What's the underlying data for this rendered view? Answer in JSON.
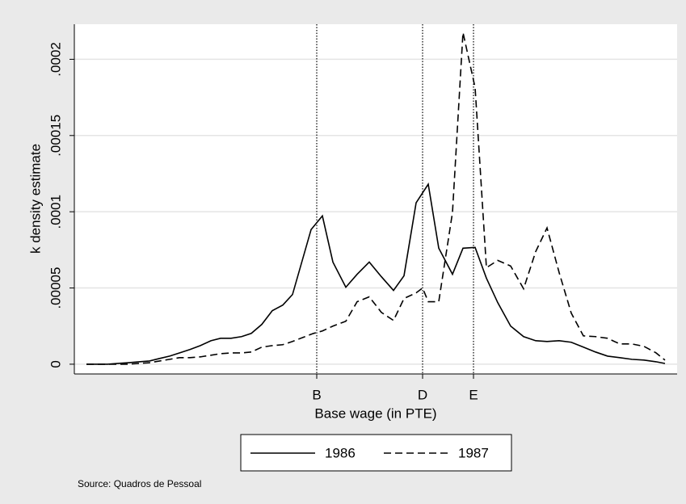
{
  "chart_data": {
    "type": "line",
    "ylabel": "k density estimate",
    "xlabel": "Base wage (in PTE)",
    "source": "Source: Quadros de Pessoal",
    "xlim": [
      0,
      746
    ],
    "ylim": [
      -6.4e-06,
      0.000223
    ],
    "xticks": [
      {
        "value": 300,
        "label": "B"
      },
      {
        "value": 431,
        "label": "D"
      },
      {
        "value": 494,
        "label": "E"
      }
    ],
    "yticks": [
      0,
      {
        "value": 5e-05,
        "label": ".00005"
      },
      {
        "value": 0.0001,
        "label": ".0001"
      },
      {
        "value": 0.00015,
        "label": ".00015"
      },
      {
        "value": 0.0002,
        "label": ".0002"
      }
    ],
    "ygrid": true,
    "xgrid": true,
    "xgrid_style": "dotted",
    "legend": "bottom",
    "series": [
      {
        "name": "1986",
        "color": "#000000",
        "dash": "solid",
        "x": [
          15,
          28,
          41,
          54,
          67,
          80,
          93,
          105,
          118,
          130,
          143,
          156,
          169,
          181,
          194,
          207,
          219,
          232,
          245,
          258,
          270,
          293,
          307,
          320,
          336,
          350,
          365,
          380,
          395,
          408,
          423,
          438,
          451,
          468,
          481,
          496,
          510,
          524,
          540,
          556,
          571,
          585,
          600,
          615,
          630,
          645,
          660,
          675,
          690,
          705,
          720,
          731
        ],
        "values": [
          0,
          0,
          0,
          5e-07,
          1e-06,
          1.6e-06,
          2.1e-06,
          3.7e-06,
          5.3e-06,
          7.4e-06,
          9.6e-06,
          1.22e-05,
          1.54e-05,
          1.7e-05,
          1.7e-05,
          1.81e-05,
          2.02e-05,
          2.61e-05,
          3.51e-05,
          3.88e-05,
          4.57e-05,
          8.83e-05,
          9.73e-05,
          6.7e-05,
          5.05e-05,
          5.9e-05,
          6.7e-05,
          5.74e-05,
          4.84e-05,
          5.8e-05,
          0.0001059,
          0.0001181,
          7.61e-05,
          5.9e-05,
          7.61e-05,
          7.66e-05,
          5.64e-05,
          4.04e-05,
          2.5e-05,
          1.81e-05,
          1.54e-05,
          1.49e-05,
          1.54e-05,
          1.44e-05,
          1.12e-05,
          8e-06,
          5.3e-06,
          4.3e-06,
          3.2e-06,
          2.7e-06,
          1.6e-06,
          5e-07
        ]
      },
      {
        "name": "1987",
        "color": "#000000",
        "dash": "dashed",
        "x": [
          15,
          41,
          67,
          93,
          118,
          130,
          143,
          156,
          169,
          181,
          194,
          207,
          219,
          232,
          245,
          258,
          270,
          283,
          296,
          307,
          320,
          336,
          350,
          365,
          380,
          395,
          408,
          423,
          431,
          438,
          451,
          468,
          481,
          496,
          510,
          524,
          540,
          556,
          571,
          585,
          600,
          615,
          630,
          645,
          660,
          675,
          690,
          705,
          720,
          731
        ],
        "values": [
          0,
          0,
          0,
          1e-06,
          3.2e-06,
          4.3e-06,
          4.3e-06,
          4.8e-06,
          5.9e-06,
          6.9e-06,
          7.4e-06,
          7.4e-06,
          8e-06,
          1.12e-05,
          1.22e-05,
          1.28e-05,
          1.49e-05,
          1.76e-05,
          2.02e-05,
          2.18e-05,
          2.5e-05,
          2.82e-05,
          4.1e-05,
          4.42e-05,
          3.4e-05,
          2.87e-05,
          4.31e-05,
          4.68e-05,
          5e-05,
          4.1e-05,
          4.1e-05,
          9.95e-05,
          0.0002176,
          0.0001814,
          6.33e-05,
          6.81e-05,
          6.44e-05,
          4.95e-05,
          7.39e-05,
          8.94e-05,
          6.01e-05,
          3.35e-05,
          1.86e-05,
          1.81e-05,
          1.7e-05,
          1.33e-05,
          1.33e-05,
          1.17e-05,
          7.4e-06,
          2.7e-06
        ]
      }
    ]
  }
}
